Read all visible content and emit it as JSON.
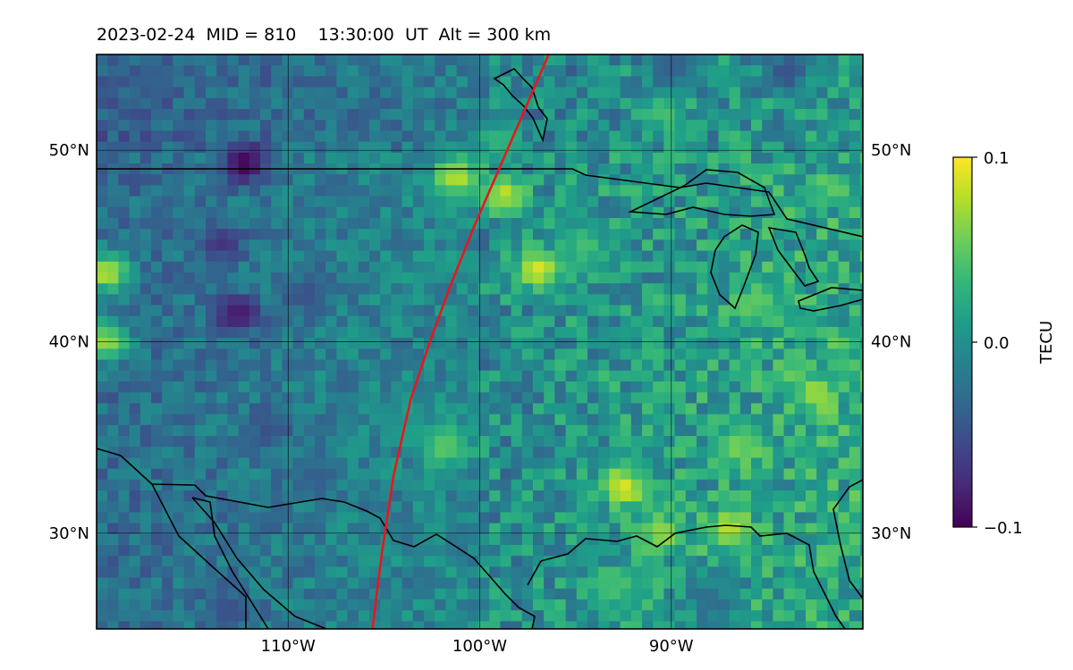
{
  "chart_data": {
    "type": "heatmap",
    "title": "2023-02-24  MID = 810    13:30:00  UT  Alt = 300 km",
    "date": "2023-02-24",
    "mid": 810,
    "time_ut": "13:30:00",
    "altitude_km": 300,
    "colormap": "viridis",
    "lon_range": [
      -120,
      -80
    ],
    "lat_range": [
      25,
      55
    ],
    "grid": true,
    "x_tick_labels": [
      {
        "lon": -110,
        "label": "110°W"
      },
      {
        "lon": -100,
        "label": "100°W"
      },
      {
        "lon": -90,
        "label": "90°W"
      }
    ],
    "y_tick_labels": [
      {
        "lat": 50,
        "label": "50°N"
      },
      {
        "lat": 40,
        "label": "40°N"
      },
      {
        "lat": 30,
        "label": "30°N"
      }
    ],
    "colorbar": {
      "label": "TECU",
      "vmin": -0.1,
      "vmax": 0.1,
      "ticks": [
        {
          "value": 0.1,
          "label": "0.1"
        },
        {
          "value": 0.0,
          "label": "0.0"
        },
        {
          "value": -0.1,
          "label": "−0.1"
        }
      ],
      "colors": [
        "#440154",
        "#482878",
        "#3e4989",
        "#31688e",
        "#26828e",
        "#1f9e89",
        "#35b779",
        "#6ece58",
        "#b5de2b",
        "#fde725"
      ]
    },
    "terminator_line": {
      "color": "#e8171b",
      "points": [
        [
          -96.4,
          55
        ],
        [
          -97.7,
          52
        ],
        [
          -99.0,
          49
        ],
        [
          -100.3,
          46
        ],
        [
          -101.5,
          43
        ],
        [
          -102.6,
          40
        ],
        [
          -103.6,
          37
        ],
        [
          -104.5,
          33
        ],
        [
          -105.1,
          29
        ],
        [
          -105.6,
          25
        ]
      ]
    },
    "field_features": [
      {
        "lon": -112.3,
        "lat": 49.3,
        "value": -0.1
      },
      {
        "lon": -112.6,
        "lat": 41.4,
        "value": -0.09
      },
      {
        "lon": -113.5,
        "lat": 45.2,
        "value": -0.07
      },
      {
        "lon": -109.0,
        "lat": 42.5,
        "value": -0.05
      },
      {
        "lon": -111.0,
        "lat": 35.5,
        "value": -0.05
      },
      {
        "lon": -117.5,
        "lat": 53.5,
        "value": -0.04
      },
      {
        "lon": -108.5,
        "lat": 33.0,
        "value": -0.04
      },
      {
        "lon": -84.0,
        "lat": 54.0,
        "value": -0.05
      },
      {
        "lon": -90.0,
        "lat": 54.5,
        "value": -0.04
      },
      {
        "lon": -113.0,
        "lat": 26.0,
        "value": -0.05
      },
      {
        "lon": -88.0,
        "lat": 26.5,
        "value": -0.03
      },
      {
        "lon": -119.5,
        "lat": 43.6,
        "value": 0.08
      },
      {
        "lon": -119.5,
        "lat": 40.0,
        "value": 0.07
      },
      {
        "lon": -97.0,
        "lat": 43.8,
        "value": 0.09
      },
      {
        "lon": -101.2,
        "lat": 48.6,
        "value": 0.08
      },
      {
        "lon": -98.7,
        "lat": 47.7,
        "value": 0.08
      },
      {
        "lon": -92.5,
        "lat": 32.4,
        "value": 0.09
      },
      {
        "lon": -90.5,
        "lat": 30.0,
        "value": 0.07
      },
      {
        "lon": -82.5,
        "lat": 37.3,
        "value": 0.07
      },
      {
        "lon": -86.5,
        "lat": 34.5,
        "value": 0.06
      },
      {
        "lon": -87.0,
        "lat": 30.2,
        "value": 0.08
      },
      {
        "lon": -101.8,
        "lat": 34.5,
        "value": 0.05
      },
      {
        "lon": -93.0,
        "lat": 27.0,
        "value": 0.04
      },
      {
        "lon": -90.5,
        "lat": 52.0,
        "value": 0.04
      },
      {
        "lon": -85.5,
        "lat": 42.0,
        "value": 0.05
      },
      {
        "lon": -94.5,
        "lat": 45.0,
        "value": 0.04
      },
      {
        "lon": -99.0,
        "lat": 50.5,
        "value": 0.03
      }
    ]
  }
}
